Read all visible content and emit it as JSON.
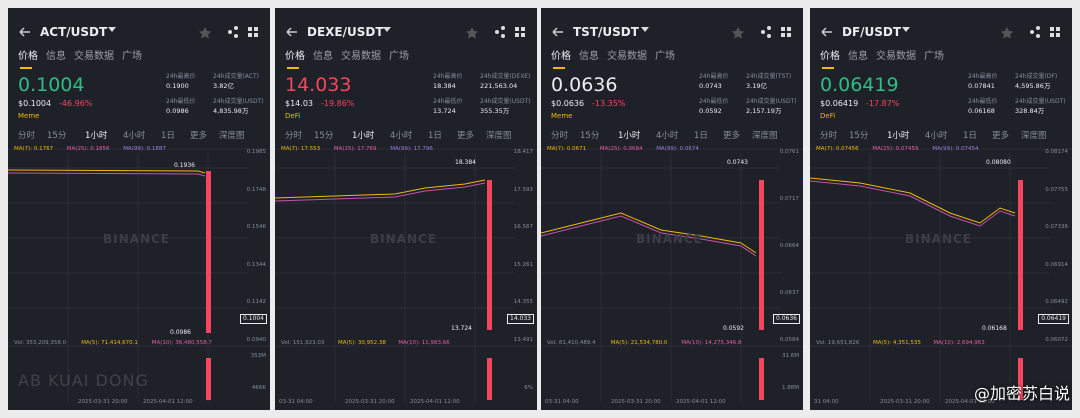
{
  "tabs": [
    "价格",
    "信息",
    "交易数据",
    "广场"
  ],
  "time_tabs": [
    "分时",
    "15分",
    "1小时",
    "4小时",
    "1日",
    "更多",
    "深度图"
  ],
  "logo": "BINANCE",
  "overlay_text": "AB KUAI DONG",
  "credit": "@加密苏白说",
  "panels": [
    {
      "pair": "ACT/USDT",
      "price": "0.1004",
      "price_color": "#2ebd85",
      "usd_price": "$0.1004",
      "change": "-46.96%",
      "tag": "Meme",
      "stats": [
        {
          "label": "24h最高价",
          "value": "0.1900"
        },
        {
          "label": "24h成交量(ACT)",
          "value": "3.82亿"
        },
        {
          "label": "24h最低价",
          "value": "0.0986"
        },
        {
          "label": "24h成交量(USDT)",
          "value": "4,835.98万"
        }
      ],
      "ma": [
        "MA(7): 0.1767",
        "MA(25): 0.1856",
        "MA(99): 0.1887"
      ],
      "yaxis": [
        "0.1985",
        "0.1748",
        "0.1546",
        "0.1344",
        "0.1142",
        "0.0940"
      ],
      "high_mark": "0.1936",
      "low_mark": "0.0986",
      "current": "0.1004",
      "vol": [
        "Vol: 353,209,358.0",
        "MA(5): 71,414,670.1",
        "MA(10): 36,480,558.7"
      ],
      "vol_axis": [
        "353M",
        "466K"
      ],
      "dates": [
        "2025-03-31 20:00",
        "2025-04-01 12:00"
      ]
    },
    {
      "pair": "DEXE/USDT",
      "price": "14.033",
      "price_color": "#f6465d",
      "usd_price": "$14.03",
      "change": "-19.86%",
      "tag": "DeFi",
      "stats": [
        {
          "label": "24h最高价",
          "value": "18.384"
        },
        {
          "label": "24h成交量(DEXE)",
          "value": "221,563.04"
        },
        {
          "label": "24h最低价",
          "value": "13.724"
        },
        {
          "label": "24h成交量(USDT)",
          "value": "355.35万"
        }
      ],
      "ma": [
        "MA(7): 17.553",
        "MA(25): 17.769",
        "MA(99): 17.796"
      ],
      "yaxis": [
        "18.417",
        "17.593",
        "16.567",
        "15.261",
        "14.355",
        "13.491"
      ],
      "high_mark": "18.384",
      "low_mark": "13.724",
      "current": "14.033",
      "vol": [
        "Vol: 151,923.03",
        "MA(5): 30,952.38",
        "MA(10): 11,983.66"
      ],
      "vol_axis": [
        "",
        "6%"
      ],
      "dates": [
        "03-31 04:00",
        "2025-03-31 20:00",
        "2025-04-01 12:00"
      ]
    },
    {
      "pair": "TST/USDT",
      "price": "0.0636",
      "price_color": "#eaecef",
      "usd_price": "$0.0636",
      "change": "-13.35%",
      "tag": "Meme",
      "stats": [
        {
          "label": "24h最高价",
          "value": "0.0743"
        },
        {
          "label": "24h成交量(TST)",
          "value": "3.19亿"
        },
        {
          "label": "24h最低价",
          "value": "0.0592"
        },
        {
          "label": "24h成交量(USDT)",
          "value": "2,157.19万"
        }
      ],
      "ma": [
        "MA(7): 0.0671",
        "MA(25): 0.0684",
        "MA(99): 0.0674"
      ],
      "yaxis": [
        "0.0761",
        "0.0717",
        "0.0664",
        "0.0637",
        "0.0584"
      ],
      "high_mark": "0.0743",
      "low_mark": "0.0592",
      "current": "0.0636",
      "vol": [
        "Vol: 81,410,489.4",
        "MA(5): 21,534,780.0",
        "MA(10): 14,275,346.8"
      ],
      "vol_axis": [
        "31.6M",
        "1.88M"
      ],
      "dates": [
        "03-31 04:00",
        "2025-03-31 20:00",
        "2025-04-01 12:00"
      ]
    },
    {
      "pair": "DF/USDT",
      "price": "0.06419",
      "price_color": "#2ebd85",
      "usd_price": "$0.06419",
      "change": "-17.87%",
      "tag": "DeFi",
      "stats": [
        {
          "label": "24h最高价",
          "value": "0.07841"
        },
        {
          "label": "24h成交量(DF)",
          "value": "4,595.86万"
        },
        {
          "label": "24h最低价",
          "value": "0.06168"
        },
        {
          "label": "24h成交量(USDT)",
          "value": "328.84万"
        }
      ],
      "ma": [
        "MA(7): 0.07456",
        "MA(25): 0.07459",
        "MA(99): 0.07454"
      ],
      "yaxis": [
        "0.08174",
        "0.07755",
        "0.07336",
        "0.06914",
        "0.06492",
        "0.06072"
      ],
      "high_mark": "0.08080",
      "low_mark": "0.06168",
      "current": "0.06419",
      "vol": [
        "Vol: 19,651,826",
        "MA(5): 4,351,535",
        "MA(10): 2,694,963"
      ],
      "vol_axis": [
        "",
        ""
      ],
      "dates": [
        "31 04:00",
        "2025-03-31 20:00",
        "2025-04-01 12:00"
      ]
    }
  ]
}
